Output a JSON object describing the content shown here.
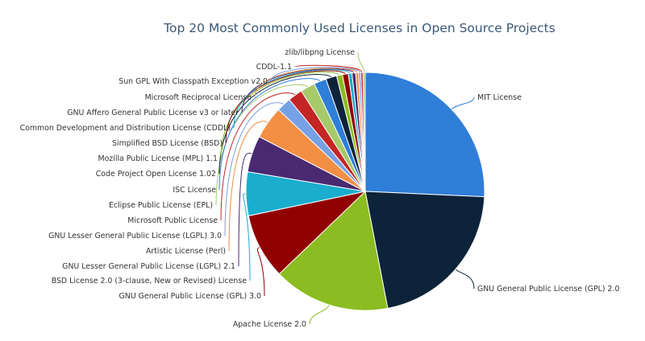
{
  "chart_data": {
    "type": "pie",
    "title": "Top 20 Most Commonly Used Licenses in Open Source Projects",
    "slices": [
      {
        "label": "MIT License",
        "value": 26,
        "color": "#2f7ed8"
      },
      {
        "label": "GNU General Public License (GPL) 2.0",
        "value": 21.5,
        "color": "#0d233a"
      },
      {
        "label": "Apache License 2.0",
        "value": 16,
        "color": "#8bbc21"
      },
      {
        "label": "GNU General Public License (GPL) 3.0",
        "value": 9,
        "color": "#910000"
      },
      {
        "label": "BSD License 2.0 (3-clause, New or Revised) License",
        "value": 6,
        "color": "#1aadce"
      },
      {
        "label": "GNU Lesser General Public License (LGPL) 2.1",
        "value": 5,
        "color": "#492970"
      },
      {
        "label": "Artistic License (Perl)",
        "value": 4.5,
        "color": "#f28f43"
      },
      {
        "label": "GNU Lesser General Public License (LGPL) 3.0",
        "value": 2,
        "color": "#77a1e5"
      },
      {
        "label": "Microsoft Public License",
        "value": 2,
        "color": "#c42525"
      },
      {
        "label": "Eclipse Public License (EPL)",
        "value": 2,
        "color": "#a6c96a"
      },
      {
        "label": "ISC License",
        "value": 1.7,
        "color": "#2f7ed8"
      },
      {
        "label": "Code Project Open License 1.02",
        "value": 1.5,
        "color": "#0d233a"
      },
      {
        "label": "Mozilla Public License (MPL) 1.1",
        "value": 0.8,
        "color": "#8bbc21"
      },
      {
        "label": "Simplified BSD License (BSD)",
        "value": 0.8,
        "color": "#910000"
      },
      {
        "label": "Common Development and Distribution License (CDDL)",
        "value": 0.5,
        "color": "#1aadce"
      },
      {
        "label": "GNU Affero General Public License v3 or later",
        "value": 0.5,
        "color": "#492970"
      },
      {
        "label": "Microsoft Reciprocal License",
        "value": 0.4,
        "color": "#f28f43"
      },
      {
        "label": "Sun GPL With Classpath Exception v2.0",
        "value": 0.3,
        "color": "#77a1e5"
      },
      {
        "label": "CDDL-1.1",
        "value": 0.3,
        "color": "#c42525"
      },
      {
        "label": "zlib/libpng License",
        "value": 0.3,
        "color": "#a6c96a"
      }
    ]
  }
}
